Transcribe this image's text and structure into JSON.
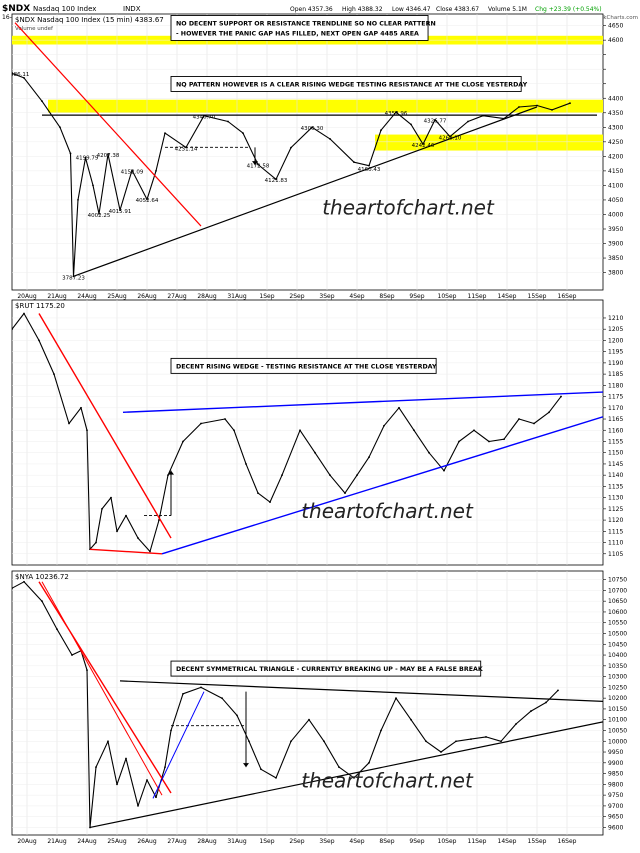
{
  "header": {
    "symbol": "$NDX",
    "name": "Nasdaq 100 Index",
    "exchange": "INDX",
    "date": "16-Sep-2015",
    "open": "Open 4357.36",
    "high": "High 4388.32",
    "low": "Low 4346.47",
    "close": "Close 4383.67",
    "volume": "Volume 5.1M",
    "chg": "Chg +23.39 (+0.54%)",
    "credit": "© StockCharts.com",
    "chg_color": "#00a000"
  },
  "x_ticks": [
    "20Aug",
    "21Aug",
    "24Aug",
    "25Aug",
    "26Aug",
    "27Aug",
    "28Aug",
    "31Aug",
    "1Sep",
    "2Sep",
    "3Sep",
    "4Sep",
    "8Sep",
    "9Sep",
    "10Sep",
    "11Sep",
    "14Sep",
    "15Sep",
    "16Sep"
  ],
  "watermark": "theartofchart.net",
  "colors": {
    "price": "#000000",
    "red_trend": "#ff0000",
    "blue_trend": "#0000ff",
    "highlight": "#ffff00",
    "up_arrow": "#000000"
  },
  "chart_data": [
    {
      "type": "line",
      "title": "$NDX Nasdaq 100 Index (15 min) 4383.67",
      "legend": "Volume undef",
      "ylim": [
        3740,
        4690
      ],
      "y_ticks": [
        3800,
        3850,
        3900,
        3950,
        4000,
        4050,
        4100,
        4150,
        4200,
        4250,
        4300,
        4350,
        4400,
        4450,
        4500,
        4550,
        4600,
        4650
      ],
      "y_tick_labels": [
        "3800",
        "3850",
        "3900",
        "3950",
        "4000",
        "4050",
        "4100",
        "4150",
        "4200",
        "4250",
        "4300",
        "4350",
        "4400",
        "",
        "",
        "",
        "4600",
        "4650"
      ],
      "key_points": [
        {
          "x": 0,
          "y": 4486
        },
        {
          "x": 0.4,
          "y": 4470
        },
        {
          "x": 1,
          "y": 4390
        },
        {
          "x": 1.6,
          "y": 4300
        },
        {
          "x": 1.95,
          "y": 4210
        },
        {
          "x": 2.05,
          "y": 3787
        },
        {
          "x": 2.2,
          "y": 4050
        },
        {
          "x": 2.45,
          "y": 4195
        },
        {
          "x": 2.7,
          "y": 4100
        },
        {
          "x": 2.9,
          "y": 4002
        },
        {
          "x": 3.2,
          "y": 4207
        },
        {
          "x": 3.6,
          "y": 4015
        },
        {
          "x": 4.0,
          "y": 4152
        },
        {
          "x": 4.5,
          "y": 4052
        },
        {
          "x": 4.8,
          "y": 4150
        },
        {
          "x": 5.1,
          "y": 4280
        },
        {
          "x": 5.8,
          "y": 4231
        },
        {
          "x": 6.4,
          "y": 4340
        },
        {
          "x": 7.2,
          "y": 4320
        },
        {
          "x": 7.7,
          "y": 4280
        },
        {
          "x": 8.2,
          "y": 4172
        },
        {
          "x": 8.8,
          "y": 4121
        },
        {
          "x": 9.3,
          "y": 4230
        },
        {
          "x": 10.0,
          "y": 4300
        },
        {
          "x": 10.6,
          "y": 4260
        },
        {
          "x": 11.4,
          "y": 4180
        },
        {
          "x": 11.9,
          "y": 4168
        },
        {
          "x": 12.3,
          "y": 4290
        },
        {
          "x": 12.8,
          "y": 4352
        },
        {
          "x": 13.3,
          "y": 4310
        },
        {
          "x": 13.7,
          "y": 4242
        },
        {
          "x": 14.1,
          "y": 4326
        },
        {
          "x": 14.6,
          "y": 4268
        },
        {
          "x": 15.2,
          "y": 4320
        },
        {
          "x": 15.7,
          "y": 4340
        },
        {
          "x": 16.4,
          "y": 4330
        },
        {
          "x": 16.9,
          "y": 4370
        },
        {
          "x": 17.5,
          "y": 4375
        },
        {
          "x": 18.0,
          "y": 4360
        },
        {
          "x": 18.6,
          "y": 4383
        }
      ],
      "labels": [
        {
          "x": 0.2,
          "y": 4486.11,
          "text": "4486.11"
        },
        {
          "x": 2.05,
          "y": 3787.23,
          "text": "3787.23"
        },
        {
          "x": 2.5,
          "y": 4199.79,
          "text": "4199.79"
        },
        {
          "x": 3.2,
          "y": 4207.38,
          "text": "4207.38"
        },
        {
          "x": 2.9,
          "y": 4002.25,
          "text": "4002.25"
        },
        {
          "x": 4.0,
          "y": 4152.09,
          "text": "4152.09"
        },
        {
          "x": 3.6,
          "y": 4015.91,
          "text": "4015.91"
        },
        {
          "x": 4.5,
          "y": 4052.64,
          "text": "4052.64"
        },
        {
          "x": 5.8,
          "y": 4231.14,
          "text": "4231.14"
        },
        {
          "x": 6.4,
          "y": 4340.7,
          "text": "4340.70"
        },
        {
          "x": 8.2,
          "y": 4172.58,
          "text": "4172.58"
        },
        {
          "x": 8.8,
          "y": 4121.83,
          "text": "4121.83"
        },
        {
          "x": 10.0,
          "y": 4300.3,
          "text": "4300.30"
        },
        {
          "x": 11.9,
          "y": 4160.43,
          "text": "4160.43"
        },
        {
          "x": 12.8,
          "y": 4352.96,
          "text": "4352.96"
        },
        {
          "x": 14.1,
          "y": 4326.77,
          "text": "4326.77"
        },
        {
          "x": 13.7,
          "y": 4242.46,
          "text": "4242.46"
        },
        {
          "x": 14.6,
          "y": 4268.1,
          "text": "4268.10"
        }
      ],
      "bands": [
        {
          "from": 4585,
          "to": 4615,
          "x_from": 0,
          "x_to": 19.7
        },
        {
          "from": 4350,
          "to": 4395,
          "x_from": 1.2,
          "x_to": 19.7
        },
        {
          "from": 4220,
          "to": 4275,
          "x_from": 12.1,
          "x_to": 19.7
        }
      ],
      "hlines": [
        {
          "y": 4342,
          "x_from": 1.0,
          "x_to": 19.5,
          "color": "#000000",
          "dash": false
        },
        {
          "y": 4231,
          "x_from": 5.1,
          "x_to": 7.9,
          "color": "#000000",
          "dash": true
        }
      ],
      "trendlines": [
        {
          "x1": 0.1,
          "y1": 4660,
          "x2": 6.3,
          "y2": 3960,
          "color": "#ff0000",
          "width": 1.2
        },
        {
          "x1": 2.05,
          "y1": 3787,
          "x2": 17.5,
          "y2": 4370,
          "color": "#000000",
          "width": 1.2
        }
      ],
      "arrows": [
        {
          "x": 8.1,
          "y_from": 4231,
          "y_to": 4170,
          "dir": "down"
        }
      ],
      "annotations": [
        {
          "text": "NO DECENT SUPPORT OR RESISTANCE TRENDLINE SO NO CLEAR PATTERN\n- HOWEVER THE PANIC GAP HAS FILLED, NEXT OPEN GAP 4485 AREA",
          "x": 5.3,
          "y": 4685
        },
        {
          "text": "NQ PATTERN HOWEVER IS A CLEAR RISING WEDGE TESTING RESISTANCE AT THE CLOSE YESTERDAY",
          "x": 5.3,
          "y": 4475
        }
      ],
      "watermark_at": {
        "x": 13.2,
        "y": 4000
      }
    },
    {
      "type": "line",
      "title": "$RUT 1175.20",
      "ylim": [
        1100,
        1218
      ],
      "y_ticks": [
        1105,
        1110,
        1115,
        1120,
        1125,
        1130,
        1135,
        1140,
        1145,
        1150,
        1155,
        1160,
        1165,
        1170,
        1175,
        1180,
        1185,
        1190,
        1195,
        1200,
        1205,
        1210
      ],
      "y_tick_labels": [
        "1105",
        "1110",
        "1115",
        "1120",
        "1125",
        "1130",
        "1135",
        "1140",
        "1145",
        "1150",
        "1155",
        "1160",
        "1165",
        "1170",
        "1175",
        "1180",
        "1185",
        "1190",
        "1195",
        "1200",
        "1205",
        "1210"
      ],
      "key_points": [
        {
          "x": 0,
          "y": 1205
        },
        {
          "x": 0.4,
          "y": 1212
        },
        {
          "x": 0.9,
          "y": 1200
        },
        {
          "x": 1.4,
          "y": 1185
        },
        {
          "x": 1.9,
          "y": 1163
        },
        {
          "x": 2.3,
          "y": 1170
        },
        {
          "x": 2.5,
          "y": 1160
        },
        {
          "x": 2.6,
          "y": 1107
        },
        {
          "x": 2.8,
          "y": 1110
        },
        {
          "x": 3.0,
          "y": 1125
        },
        {
          "x": 3.3,
          "y": 1130
        },
        {
          "x": 3.5,
          "y": 1115
        },
        {
          "x": 3.8,
          "y": 1122
        },
        {
          "x": 4.2,
          "y": 1112
        },
        {
          "x": 4.6,
          "y": 1106
        },
        {
          "x": 4.9,
          "y": 1120
        },
        {
          "x": 5.2,
          "y": 1140
        },
        {
          "x": 5.7,
          "y": 1155
        },
        {
          "x": 6.3,
          "y": 1163
        },
        {
          "x": 7.1,
          "y": 1165
        },
        {
          "x": 7.4,
          "y": 1160
        },
        {
          "x": 7.8,
          "y": 1145
        },
        {
          "x": 8.2,
          "y": 1132
        },
        {
          "x": 8.6,
          "y": 1128
        },
        {
          "x": 9.0,
          "y": 1140
        },
        {
          "x": 9.6,
          "y": 1160
        },
        {
          "x": 10.1,
          "y": 1150
        },
        {
          "x": 10.6,
          "y": 1140
        },
        {
          "x": 11.1,
          "y": 1132
        },
        {
          "x": 11.5,
          "y": 1140
        },
        {
          "x": 11.9,
          "y": 1148
        },
        {
          "x": 12.4,
          "y": 1162
        },
        {
          "x": 12.9,
          "y": 1170
        },
        {
          "x": 13.4,
          "y": 1160
        },
        {
          "x": 13.9,
          "y": 1150
        },
        {
          "x": 14.4,
          "y": 1142
        },
        {
          "x": 14.9,
          "y": 1155
        },
        {
          "x": 15.4,
          "y": 1160
        },
        {
          "x": 15.9,
          "y": 1155
        },
        {
          "x": 16.4,
          "y": 1156
        },
        {
          "x": 16.9,
          "y": 1165
        },
        {
          "x": 17.4,
          "y": 1163
        },
        {
          "x": 17.9,
          "y": 1168
        },
        {
          "x": 18.3,
          "y": 1175
        }
      ],
      "hlines": [
        {
          "y": 1122,
          "x_from": 4.4,
          "x_to": 5.3,
          "color": "#000000",
          "dash": true
        }
      ],
      "trendlines": [
        {
          "x1": 0.9,
          "y1": 1212,
          "x2": 5.3,
          "y2": 1112,
          "color": "#ff0000",
          "width": 1.4
        },
        {
          "x1": 2.6,
          "y1": 1107,
          "x2": 5.0,
          "y2": 1105,
          "color": "#ff0000",
          "width": 1.4
        },
        {
          "x1": 3.7,
          "y1": 1168,
          "x2": 19.7,
          "y2": 1177,
          "color": "#0000ff",
          "width": 1.4
        },
        {
          "x1": 5.0,
          "y1": 1105,
          "x2": 19.7,
          "y2": 1166,
          "color": "#0000ff",
          "width": 1.4
        }
      ],
      "arrows": [
        {
          "x": 5.3,
          "y_from": 1122,
          "y_to": 1142,
          "dir": "up"
        }
      ],
      "annotations": [
        {
          "text": "DECENT RISING WEDGE - TESTING RESISTANCE AT THE CLOSE YESTERDAY",
          "x": 5.3,
          "y": 1192
        }
      ],
      "watermark_at": {
        "x": 12.5,
        "y": 1121
      }
    },
    {
      "type": "line",
      "title": "$NYA 10236.72",
      "ylim": [
        9565,
        10790
      ],
      "y_ticks": [
        9600,
        9650,
        9700,
        9750,
        9800,
        9850,
        9900,
        9950,
        10000,
        10050,
        10100,
        10150,
        10200,
        10250,
        10300,
        10350,
        10400,
        10450,
        10500,
        10550,
        10600,
        10650,
        10700,
        10750
      ],
      "y_tick_labels": [
        "9600",
        "9650",
        "9700",
        "9750",
        "9800",
        "9850",
        "9900",
        "9950",
        "10000",
        "10050",
        "10100",
        "10150",
        "10200",
        "10250",
        "10300",
        "10350",
        "10400",
        "10450",
        "10500",
        "10550",
        "10600",
        "10650",
        "10700",
        "10750"
      ],
      "key_points": [
        {
          "x": 0,
          "y": 10710
        },
        {
          "x": 0.4,
          "y": 10740
        },
        {
          "x": 1.0,
          "y": 10650
        },
        {
          "x": 1.5,
          "y": 10520
        },
        {
          "x": 2.0,
          "y": 10400
        },
        {
          "x": 2.3,
          "y": 10420
        },
        {
          "x": 2.5,
          "y": 10330
        },
        {
          "x": 2.6,
          "y": 9600
        },
        {
          "x": 2.8,
          "y": 9880
        },
        {
          "x": 3.2,
          "y": 10000
        },
        {
          "x": 3.5,
          "y": 9800
        },
        {
          "x": 3.8,
          "y": 9920
        },
        {
          "x": 4.2,
          "y": 9700
        },
        {
          "x": 4.5,
          "y": 9820
        },
        {
          "x": 4.8,
          "y": 9740
        },
        {
          "x": 5.1,
          "y": 9880
        },
        {
          "x": 5.3,
          "y": 10050
        },
        {
          "x": 5.7,
          "y": 10220
        },
        {
          "x": 6.3,
          "y": 10250
        },
        {
          "x": 7.0,
          "y": 10200
        },
        {
          "x": 7.5,
          "y": 10120
        },
        {
          "x": 7.9,
          "y": 10000
        },
        {
          "x": 8.3,
          "y": 9870
        },
        {
          "x": 8.8,
          "y": 9830
        },
        {
          "x": 9.3,
          "y": 10000
        },
        {
          "x": 9.9,
          "y": 10100
        },
        {
          "x": 10.4,
          "y": 10000
        },
        {
          "x": 10.9,
          "y": 9880
        },
        {
          "x": 11.4,
          "y": 9830
        },
        {
          "x": 11.9,
          "y": 9900
        },
        {
          "x": 12.3,
          "y": 10050
        },
        {
          "x": 12.8,
          "y": 10200
        },
        {
          "x": 13.3,
          "y": 10100
        },
        {
          "x": 13.8,
          "y": 10000
        },
        {
          "x": 14.3,
          "y": 9950
        },
        {
          "x": 14.8,
          "y": 10000
        },
        {
          "x": 15.3,
          "y": 10010
        },
        {
          "x": 15.8,
          "y": 10020
        },
        {
          "x": 16.3,
          "y": 10000
        },
        {
          "x": 16.8,
          "y": 10080
        },
        {
          "x": 17.3,
          "y": 10140
        },
        {
          "x": 17.8,
          "y": 10180
        },
        {
          "x": 18.2,
          "y": 10236
        }
      ],
      "hlines": [
        {
          "y": 10072,
          "x_from": 5.3,
          "x_to": 7.8,
          "color": "#000000",
          "dash": true
        }
      ],
      "trendlines": [
        {
          "x1": 0.9,
          "y1": 10740,
          "x2": 5.3,
          "y2": 9760,
          "color": "#ff0000",
          "width": 1.4
        },
        {
          "x1": 1.0,
          "y1": 10740,
          "x2": 5.0,
          "y2": 9750,
          "color": "#ff0000",
          "width": 1.0
        },
        {
          "x1": 4.7,
          "y1": 9735,
          "x2": 6.4,
          "y2": 10230,
          "color": "#0000ff",
          "width": 1.0
        },
        {
          "x1": 3.6,
          "y1": 10280,
          "x2": 19.7,
          "y2": 10185,
          "color": "#000000",
          "width": 1.2
        },
        {
          "x1": 2.6,
          "y1": 9600,
          "x2": 19.7,
          "y2": 10090,
          "color": "#000000",
          "width": 1.2
        }
      ],
      "arrows": [
        {
          "x": 7.8,
          "y_from": 10230,
          "y_to": 9880,
          "dir": "down"
        }
      ],
      "annotations": [
        {
          "text": "DECENT SYMMETRICAL TRIANGLE - CURRENTLY BREAKING UP - MAY BE A FALSE BREAK",
          "x": 5.3,
          "y": 10372
        }
      ],
      "watermark_at": {
        "x": 12.5,
        "y": 9785
      }
    }
  ]
}
